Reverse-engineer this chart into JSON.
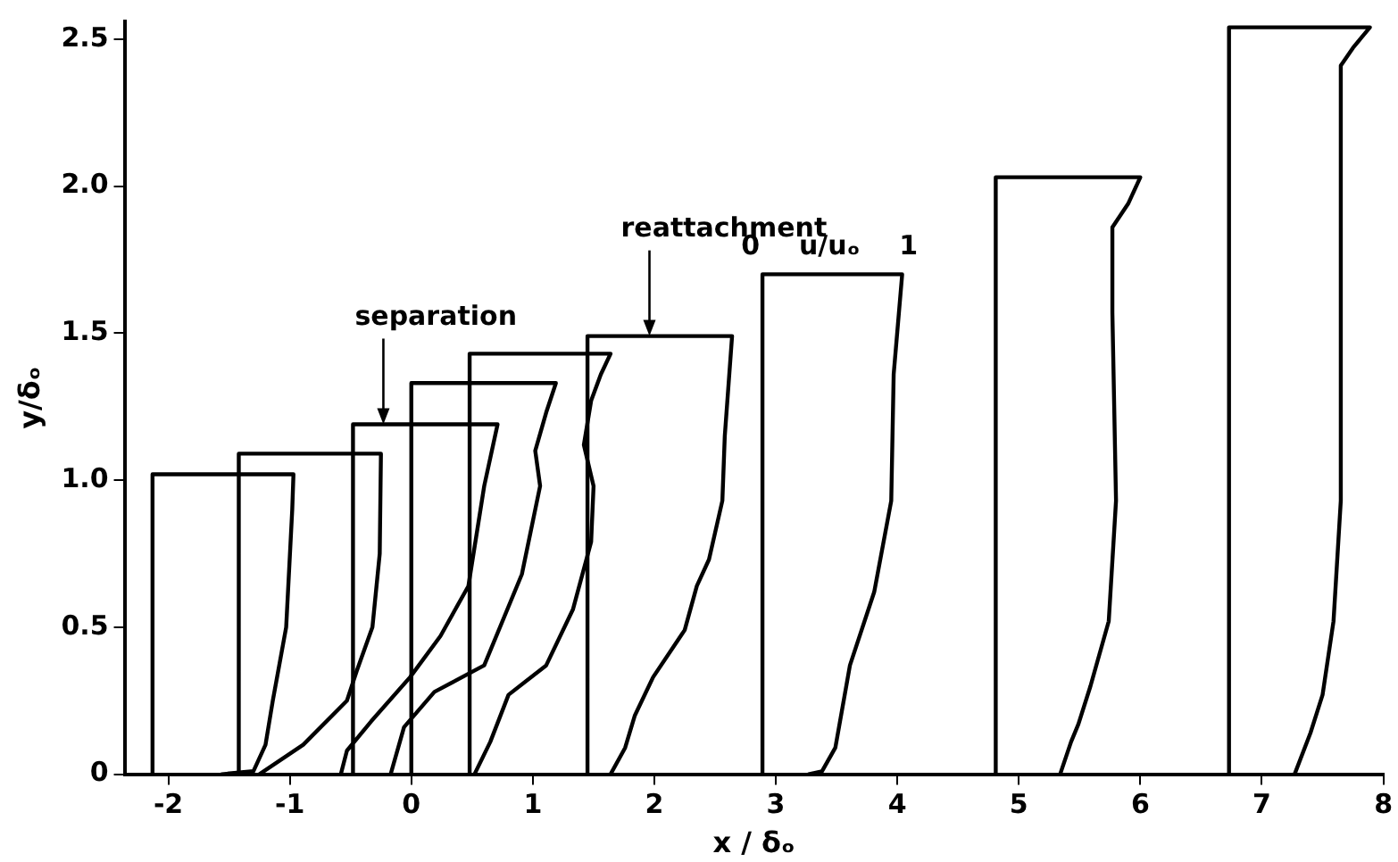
{
  "chart_data": {
    "type": "line",
    "xlabel": "x / δₒ",
    "ylabel": "y/δₒ",
    "xlim": [
      -2.36,
      8
    ],
    "ylim": [
      0,
      2.56
    ],
    "xticks": [
      -2,
      -1,
      0,
      1,
      2,
      3,
      4,
      5,
      6,
      7,
      8
    ],
    "yticks": [
      0,
      0.5,
      {
        "value": 1,
        "label": "1.0"
      },
      1.5,
      {
        "value": 2,
        "label": "2.0"
      },
      2.5
    ],
    "grid": false,
    "legend": false,
    "marker": "none",
    "line_style": "solid",
    "series": [
      {
        "color": "#000000",
        "x": [
          -2.13,
          -2.13,
          -0.97,
          -0.98,
          -1.03,
          -1.14,
          -1.2,
          -1.3,
          -1.56
        ],
        "values": [
          0,
          1.02,
          1.02,
          0.9,
          0.5,
          0.25,
          0.1,
          0.01,
          0
        ]
      },
      {
        "color": "#000000",
        "x": [
          -1.42,
          -1.42,
          -0.25,
          -0.26,
          -0.32,
          -0.45,
          -0.53,
          -0.89,
          -1.25
        ],
        "values": [
          0,
          1.09,
          1.09,
          0.75,
          0.5,
          0.35,
          0.25,
          0.1,
          0
        ]
      },
      {
        "color": "#000000",
        "x": [
          -0.48,
          -0.48,
          0.71,
          0.6,
          0.47,
          0.24,
          -0.01,
          -0.33,
          -0.53,
          -0.58
        ],
        "values": [
          0,
          1.19,
          1.19,
          0.98,
          0.64,
          0.47,
          0.33,
          0.18,
          0.08,
          0
        ]
      },
      {
        "color": "#000000",
        "x": [
          0,
          0,
          1.19,
          1.11,
          1.02,
          1.06,
          0.91,
          0.6,
          0.19,
          -0.06,
          -0.17
        ],
        "values": [
          0,
          1.33,
          1.33,
          1.23,
          1.1,
          0.98,
          0.68,
          0.37,
          0.28,
          0.16,
          0
        ]
      },
      {
        "color": "#000000",
        "x": [
          0.48,
          0.48,
          1.64,
          1.56,
          1.48,
          1.42,
          1.5,
          1.48,
          1.33,
          1.11,
          0.8,
          0.65,
          0.52
        ],
        "values": [
          0,
          1.43,
          1.43,
          1.36,
          1.27,
          1.12,
          0.98,
          0.79,
          0.56,
          0.37,
          0.27,
          0.11,
          0
        ]
      },
      {
        "color": "#000000",
        "x": [
          1.45,
          1.45,
          2.64,
          2.58,
          2.56,
          2.45,
          2.35,
          2.25,
          1.99,
          1.84,
          1.76,
          1.64
        ],
        "values": [
          0,
          1.49,
          1.49,
          1.15,
          0.93,
          0.73,
          0.64,
          0.49,
          0.33,
          0.2,
          0.09,
          0
        ]
      },
      {
        "color": "#000000",
        "x": [
          2.89,
          2.89,
          4.04,
          3.97,
          3.95,
          3.81,
          3.61,
          3.49,
          3.38,
          3.27
        ],
        "values": [
          0,
          1.7,
          1.7,
          1.36,
          0.93,
          0.62,
          0.37,
          0.09,
          0.01,
          0
        ]
      },
      {
        "color": "#000000",
        "x": [
          4.81,
          4.81,
          6,
          5.9,
          5.77,
          5.77,
          5.8,
          5.74,
          5.59,
          5.49,
          5.43,
          5.34
        ],
        "values": [
          0,
          2.03,
          2.03,
          1.94,
          1.86,
          1.57,
          0.93,
          0.52,
          0.3,
          0.17,
          0.11,
          0
        ]
      },
      {
        "color": "#000000",
        "x": [
          6.73,
          6.73,
          7.89,
          7.75,
          7.65,
          7.65,
          7.59,
          7.5,
          7.4,
          7.27
        ],
        "values": [
          0,
          2.54,
          2.54,
          2.47,
          2.41,
          0.93,
          0.52,
          0.27,
          0.14,
          0
        ]
      }
    ],
    "annotations": [
      {
        "text": "separation",
        "x": -0.23,
        "y": 1.19
      },
      {
        "text": "reattachment",
        "x": 1.96,
        "y": 1.49
      },
      "0",
      "u/uₒ",
      "1"
    ]
  }
}
